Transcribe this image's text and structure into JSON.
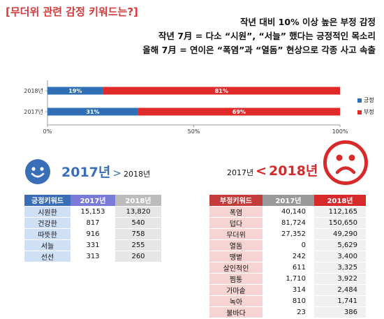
{
  "header": {
    "title": "[무더위 관련 감정 키워드는?]",
    "summary": [
      "작년 대비 10% 이상 높은 부정 감정",
      "작년 7月 = 다소 “시원”, “서늘” 했다는 긍정적인 목소리",
      "올해 7月 = 연이은 “폭염”과 “열돔” 현상으로 각종 사고 속출"
    ]
  },
  "chart_data": {
    "type": "bar",
    "orientation": "horizontal",
    "stacked": true,
    "percent": true,
    "categories": [
      "2018년",
      "2017년"
    ],
    "series": [
      {
        "name": "긍정",
        "values": [
          19,
          31
        ],
        "labels": [
          "19%",
          "31%"
        ],
        "color": "#2f6fb5"
      },
      {
        "name": "부정",
        "values": [
          81,
          69
        ],
        "labels": [
          "81%",
          "69%"
        ],
        "color": "#e02a2a"
      }
    ],
    "xlim": [
      0,
      100
    ],
    "xticks": [
      0,
      50,
      100
    ],
    "xtick_labels": [
      "0%",
      "50%",
      "100%"
    ],
    "legend": "right",
    "grid": false
  },
  "positive": {
    "face_icon": "smiley-face-icon",
    "big_year": "2017년",
    "arrow": ">",
    "small_year": "2018년",
    "headers": [
      "긍정키워드",
      "2017년",
      "2018년"
    ],
    "rows": [
      [
        "시원한",
        "15,153",
        "13,820"
      ],
      [
        "건강한",
        "817",
        "540"
      ],
      [
        "따뜻한",
        "916",
        "758"
      ],
      [
        "서늘",
        "331",
        "255"
      ],
      [
        "선선",
        "313",
        "260"
      ]
    ]
  },
  "negative": {
    "face_icon": "sad-face-icon",
    "small_year": "2017년",
    "arrow": "<",
    "big_year": "2018년",
    "headers": [
      "부정키워드",
      "2017년",
      "2018년"
    ],
    "rows": [
      [
        "폭염",
        "40,140",
        "112,165"
      ],
      [
        "덥다",
        "81,724",
        "150,650"
      ],
      [
        "무더위",
        "27,352",
        "49,290"
      ],
      [
        "열돔",
        "0",
        "5,629"
      ],
      [
        "땡볕",
        "242",
        "3,400"
      ],
      [
        "살인적인",
        "611",
        "3,325"
      ],
      [
        "찜통",
        "1,710",
        "3,922"
      ],
      [
        "가마솥",
        "314",
        "2,484"
      ],
      [
        "녹아",
        "810",
        "1,741"
      ],
      [
        "불바다",
        "23",
        "386"
      ]
    ]
  }
}
